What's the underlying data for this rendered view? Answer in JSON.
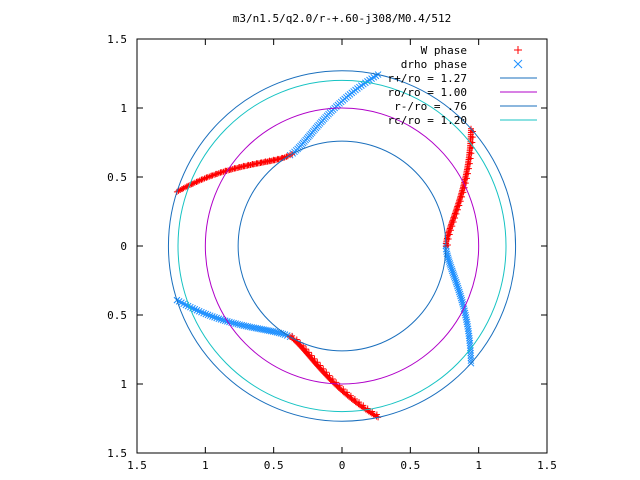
{
  "chart_data": {
    "type": "scatter",
    "title": "m3/n1.5/q2.0/r-+.60-j308/M0.4/512",
    "xlabel": "",
    "ylabel": "",
    "xlim": [
      -1.5,
      1.5
    ],
    "ylim": [
      -1.5,
      1.5
    ],
    "xticks": [
      -1.5,
      -1,
      -0.5,
      0,
      0.5,
      1,
      1.5
    ],
    "xtick_labels": [
      "1.5",
      "1",
      "0.5",
      "0",
      "0.5",
      "1",
      "1.5"
    ],
    "yticks": [
      1.5,
      1,
      0.5,
      0,
      -0.5,
      -1,
      -1.5
    ],
    "ytick_labels": [
      "1.5",
      "1",
      "0.5",
      "0",
      "0.5",
      "1",
      "1.5"
    ],
    "grid": false,
    "legend_position": "top-right",
    "legend": [
      {
        "label": "W phase",
        "marker": "+",
        "color": "#ff0000"
      },
      {
        "label": "drho phase",
        "marker": "x",
        "color": "#1e90ff"
      },
      {
        "label": "r+/ro = 1.27",
        "marker": "line",
        "color": "#1a6fbd"
      },
      {
        "label": "ro/ro = 1.00",
        "marker": "line",
        "color": "#b000c8"
      },
      {
        "label": "r-/ro = .76",
        "marker": "line",
        "color": "#1a6fbd"
      },
      {
        "label": "rc/ro = 1.20",
        "marker": "line",
        "color": "#17c3c3"
      }
    ],
    "circles": [
      {
        "name": "r+/ro",
        "radius": 1.27,
        "color": "#1a6fbd"
      },
      {
        "name": "ro/ro",
        "radius": 1.0,
        "color": "#b000c8"
      },
      {
        "name": "r-/ro",
        "radius": 0.76,
        "color": "#1a6fbd"
      },
      {
        "name": "rc/ro",
        "radius": 1.2,
        "color": "#17c3c3"
      }
    ],
    "arms": [
      {
        "series": "W phase",
        "color": "#ff0000",
        "marker": "+",
        "r_start": 0.76,
        "r_end": 1.27,
        "theta_start_deg": 0,
        "swing_deg": 42,
        "count": 75
      },
      {
        "series": "W phase",
        "color": "#ff0000",
        "marker": "+",
        "r_start": 0.76,
        "r_end": 1.27,
        "theta_start_deg": 120,
        "swing_deg": 42,
        "count": 75
      },
      {
        "series": "W phase",
        "color": "#ff0000",
        "marker": "+",
        "r_start": 0.76,
        "r_end": 1.27,
        "theta_start_deg": 240,
        "swing_deg": 42,
        "count": 75
      },
      {
        "series": "drho phase",
        "color": "#1e90ff",
        "marker": "x",
        "r_start": 0.76,
        "r_end": 1.27,
        "theta_start_deg": 0,
        "swing_deg": -42,
        "count": 55
      },
      {
        "series": "drho phase",
        "color": "#1e90ff",
        "marker": "x",
        "r_start": 0.76,
        "r_end": 1.27,
        "theta_start_deg": 120,
        "swing_deg": -42,
        "count": 55
      },
      {
        "series": "drho phase",
        "color": "#1e90ff",
        "marker": "x",
        "r_start": 0.76,
        "r_end": 1.27,
        "theta_start_deg": 240,
        "swing_deg": -42,
        "count": 55
      }
    ]
  }
}
